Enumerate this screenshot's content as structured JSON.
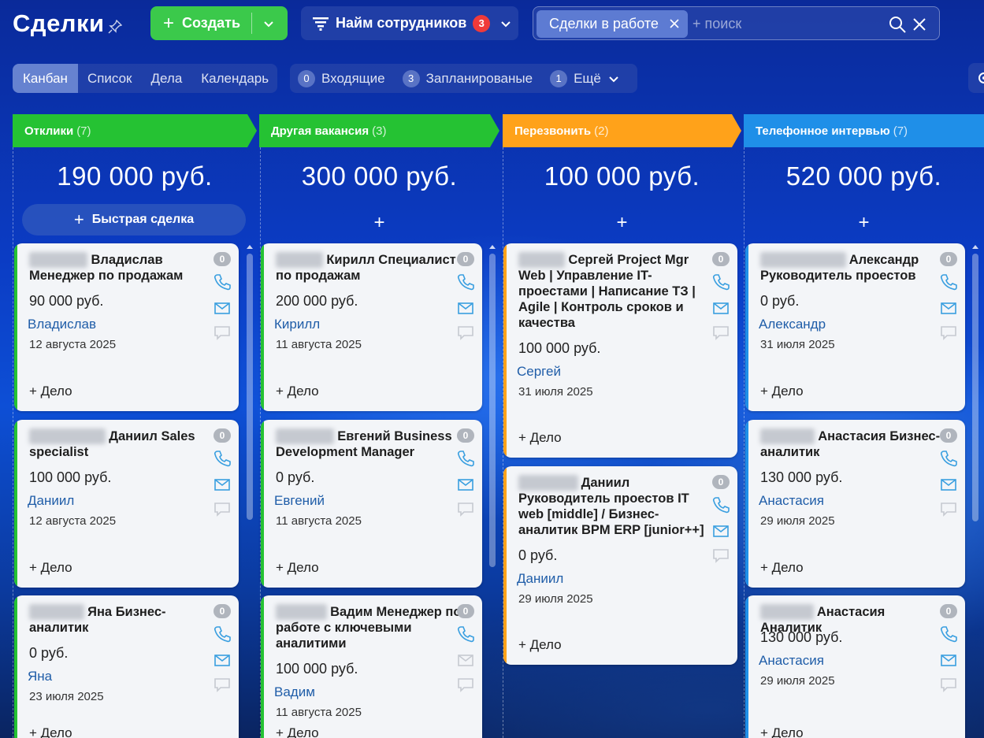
{
  "header": {
    "title": "Сделки",
    "create_label": "Создать",
    "funnel_label": "Найм сотрудников",
    "funnel_badge": "3",
    "filter_chip": "Сделки в работе",
    "search_placeholder": "+ поиск"
  },
  "views": [
    "Канбан",
    "Список",
    "Дела",
    "Календарь"
  ],
  "counters": [
    {
      "num": "0",
      "label": "Входящие"
    },
    {
      "num": "3",
      "label": "Запланированые"
    },
    {
      "num": "1",
      "label": "Ещё"
    }
  ],
  "columns": [
    {
      "stage": "Отклики",
      "count": "(7)",
      "color": "#25c233",
      "sum": "190 000 руб.",
      "quick_add": "Быстрая сделка",
      "cards": [
        {
          "blur": "Рыжаков",
          "name": "Владислав Менеджер по продажам",
          "price": "90 000 руб.",
          "contact": "Владислав",
          "date": "12 августа 2025",
          "task": "+ Дело",
          "counter": "0"
        },
        {
          "blur": "Венедиктов",
          "name": "Даниил Sales specialist",
          "price": "100 000 руб.",
          "contact": "Даниил",
          "date": "12 августа 2025",
          "task": "+ Дело",
          "counter": "0"
        },
        {
          "blur": "Иванова",
          "name": "Яна Бизнес-аналитик",
          "price": "0 руб.",
          "contact": "Яна",
          "date": "23 июля 2025",
          "task": "+ Дело",
          "counter": "0"
        }
      ]
    },
    {
      "stage": "Другая вакансия",
      "count": "(3)",
      "color": "#25c233",
      "sum": "300 000 руб.",
      "cards": [
        {
          "blur": "Войтин",
          "name": "Кирилл Специалист по продажам",
          "price": "200 000 руб.",
          "contact": "Кирилл",
          "date": "11 августа 2025",
          "task": "+ Дело",
          "counter": "0"
        },
        {
          "blur": "Миронов",
          "name": "Евгений Business Development Manager",
          "price": "0 руб.",
          "contact": "Евгений",
          "date": "11 августа 2025",
          "task": "+ Дело",
          "counter": "0"
        },
        {
          "blur": "Рыжков",
          "name": "Вадим Менеджер по работе с ключевыми аналитими",
          "price": "100 000 руб.",
          "contact": "Вадим",
          "date": "11 августа 2025",
          "task": "+ Дело",
          "counter": "0"
        }
      ]
    },
    {
      "stage": "Перезвонить",
      "count": "(2)",
      "color": "#ffa21a",
      "sum": "100 000 руб.",
      "cards": [
        {
          "blur": "Куприн",
          "name": "Сергей Project Mgr Web | Управление IT-проестами | Написание ТЗ | Agile | Контроль сроков и качества",
          "price": "100 000 руб.",
          "contact": "Сергей",
          "date": "31 июля 2025",
          "task": "+ Дело",
          "counter": "0"
        },
        {
          "blur": "Ромашов",
          "name": "Даниил Руководитель проестов IT web [middle] / Бизнес-аналитик BPM ERP [junior++]",
          "price": "0 руб.",
          "contact": "Даниил",
          "date": "29 июля 2025",
          "task": "+ Дело",
          "counter": "0"
        }
      ]
    },
    {
      "stage": "Телефонное интервью",
      "count": "(7)",
      "color": "#1f8fe8",
      "sum": "520 000 руб.",
      "cards": [
        {
          "blur": "Александров",
          "name": "Александр Руководитель проестов",
          "price": "0 руб.",
          "contact": "Александр",
          "date": "31 июля 2025",
          "task": "+ Дело",
          "counter": "0"
        },
        {
          "blur": "Дурнева",
          "name": "Анастасия Бизнес-аналитик",
          "price": "130 000 руб.",
          "contact": "Анастасия",
          "date": "29 июля 2025",
          "task": "+ Дело",
          "counter": "0"
        },
        {
          "blur": "Гаврина",
          "name": "Анастасия Аналитик",
          "price": "130 000 руб.",
          "contact": "Анастасия",
          "date": "29 июля 2025",
          "task": "+ Дело",
          "counter": "0"
        }
      ]
    }
  ]
}
